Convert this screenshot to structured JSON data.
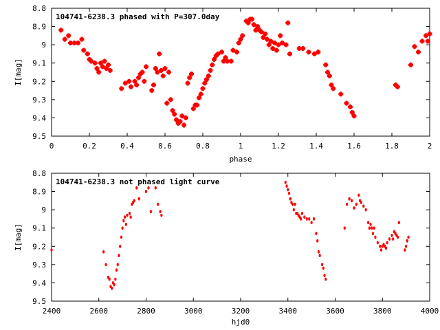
{
  "chart_data": [
    {
      "type": "scatter",
      "title": "104741-6238.3 phased with P=307.0day",
      "xlabel": "phase",
      "ylabel": "I[mag]",
      "xlim": [
        0,
        2
      ],
      "ylim": [
        8.8,
        9.5
      ],
      "y_inverted": true,
      "x_ticks": [
        "0",
        "0.2",
        "0.4",
        "0.6",
        "0.8",
        "1",
        "1.2",
        "1.4",
        "1.6",
        "1.8",
        "2"
      ],
      "y_ticks": [
        "8.8",
        "8.9",
        "9",
        "9.1",
        "9.2",
        "9.3",
        "9.4",
        "9.5"
      ],
      "marker_color": "#ff0000",
      "marker": "cross-large",
      "points": [
        [
          0.05,
          8.92
        ],
        [
          0.07,
          8.97
        ],
        [
          0.09,
          8.95
        ],
        [
          0.1,
          8.99
        ],
        [
          0.12,
          8.99
        ],
        [
          0.14,
          8.99
        ],
        [
          0.16,
          8.97
        ],
        [
          0.17,
          9.03
        ],
        [
          0.19,
          9.05
        ],
        [
          0.2,
          9.08
        ],
        [
          0.21,
          9.09
        ],
        [
          0.23,
          9.1
        ],
        [
          0.24,
          9.13
        ],
        [
          0.25,
          9.15
        ],
        [
          0.26,
          9.1
        ],
        [
          0.27,
          9.12
        ],
        [
          0.28,
          9.09
        ],
        [
          0.29,
          9.13
        ],
        [
          0.3,
          9.11
        ],
        [
          0.31,
          9.14
        ],
        [
          0.37,
          9.24
        ],
        [
          0.39,
          9.21
        ],
        [
          0.41,
          9.2
        ],
        [
          0.42,
          9.23
        ],
        [
          0.44,
          9.2
        ],
        [
          0.45,
          9.22
        ],
        [
          0.46,
          9.18
        ],
        [
          0.47,
          9.16
        ],
        [
          0.48,
          9.15
        ],
        [
          0.49,
          9.2
        ],
        [
          0.5,
          9.12
        ],
        [
          0.53,
          9.25
        ],
        [
          0.54,
          9.22
        ],
        [
          0.55,
          9.13
        ],
        [
          0.56,
          9.15
        ],
        [
          0.57,
          9.05
        ],
        [
          0.58,
          9.14
        ],
        [
          0.59,
          9.17
        ],
        [
          0.6,
          9.13
        ],
        [
          0.61,
          9.32
        ],
        [
          0.62,
          9.15
        ],
        [
          0.63,
          9.3
        ],
        [
          0.64,
          9.36
        ],
        [
          0.65,
          9.38
        ],
        [
          0.66,
          9.41
        ],
        [
          0.67,
          9.43
        ],
        [
          0.68,
          9.42
        ],
        [
          0.69,
          9.39
        ],
        [
          0.7,
          9.44
        ],
        [
          0.71,
          9.4
        ],
        [
          0.72,
          9.21
        ],
        [
          0.73,
          9.18
        ],
        [
          0.74,
          9.16
        ],
        [
          0.75,
          9.35
        ],
        [
          0.76,
          9.33
        ],
        [
          0.77,
          9.33
        ],
        [
          0.78,
          9.29
        ],
        [
          0.79,
          9.27
        ],
        [
          0.8,
          9.24
        ],
        [
          0.81,
          9.21
        ],
        [
          0.82,
          9.19
        ],
        [
          0.83,
          9.17
        ],
        [
          0.84,
          9.14
        ],
        [
          0.85,
          9.11
        ],
        [
          0.86,
          9.08
        ],
        [
          0.87,
          9.06
        ],
        [
          0.88,
          9.05
        ],
        [
          0.9,
          9.04
        ],
        [
          0.91,
          9.09
        ],
        [
          0.92,
          9.07
        ],
        [
          0.93,
          9.09
        ],
        [
          0.95,
          9.09
        ],
        [
          0.96,
          9.03
        ],
        [
          0.98,
          9.04
        ],
        [
          0.99,
          8.99
        ],
        [
          1.0,
          8.97
        ],
        [
          1.01,
          8.95
        ],
        [
          1.03,
          8.87
        ],
        [
          1.04,
          8.88
        ],
        [
          1.05,
          8.86
        ],
        [
          1.06,
          8.86
        ],
        [
          1.07,
          8.89
        ],
        [
          1.08,
          8.92
        ],
        [
          1.09,
          8.9
        ],
        [
          1.1,
          8.92
        ],
        [
          1.11,
          8.93
        ],
        [
          1.12,
          8.96
        ],
        [
          1.13,
          8.94
        ],
        [
          1.14,
          8.97
        ],
        [
          1.15,
          9.0
        ],
        [
          1.16,
          8.98
        ],
        [
          1.17,
          9.02
        ],
        [
          1.18,
          8.99
        ],
        [
          1.19,
          9.03
        ],
        [
          1.2,
          9.0
        ],
        [
          1.21,
          8.95
        ],
        [
          1.22,
          8.99
        ],
        [
          1.24,
          9.0
        ],
        [
          1.25,
          8.88
        ],
        [
          1.26,
          9.05
        ],
        [
          1.31,
          9.02
        ],
        [
          1.33,
          9.02
        ],
        [
          1.36,
          9.04
        ],
        [
          1.39,
          9.05
        ],
        [
          1.41,
          9.04
        ],
        [
          1.45,
          9.11
        ],
        [
          1.46,
          9.15
        ],
        [
          1.47,
          9.17
        ],
        [
          1.48,
          9.22
        ],
        [
          1.49,
          9.24
        ],
        [
          1.53,
          9.27
        ],
        [
          1.56,
          9.32
        ],
        [
          1.58,
          9.34
        ],
        [
          1.59,
          9.37
        ],
        [
          1.6,
          9.39
        ],
        [
          1.82,
          9.22
        ],
        [
          1.83,
          9.23
        ],
        [
          1.9,
          9.11
        ],
        [
          1.92,
          9.01
        ],
        [
          1.94,
          9.04
        ],
        [
          1.96,
          8.98
        ],
        [
          1.98,
          8.95
        ],
        [
          1.99,
          8.98
        ],
        [
          2.0,
          8.94
        ]
      ]
    },
    {
      "type": "scatter",
      "title": "104741-6238.3 not phased light curve",
      "xlabel": "hjd0",
      "ylabel": "I[mag]",
      "xlim": [
        2400,
        4000
      ],
      "ylim": [
        8.8,
        9.5
      ],
      "y_inverted": true,
      "x_ticks": [
        "2400",
        "2600",
        "2800",
        "3000",
        "3200",
        "3400",
        "3600",
        "3800",
        "4000"
      ],
      "y_ticks": [
        "8.8",
        "8.9",
        "9",
        "9.1",
        "9.2",
        "9.3",
        "9.4",
        "9.5"
      ],
      "marker_color": "#ff0000",
      "marker": "dot",
      "points": [
        [
          2400,
          9.22
        ],
        [
          2620,
          9.23
        ],
        [
          2630,
          9.3
        ],
        [
          2640,
          9.37
        ],
        [
          2645,
          9.38
        ],
        [
          2650,
          9.42
        ],
        [
          2655,
          9.43
        ],
        [
          2660,
          9.4
        ],
        [
          2665,
          9.41
        ],
        [
          2670,
          9.38
        ],
        [
          2675,
          9.33
        ],
        [
          2680,
          9.3
        ],
        [
          2685,
          9.25
        ],
        [
          2690,
          9.2
        ],
        [
          2695,
          9.15
        ],
        [
          2700,
          9.1
        ],
        [
          2705,
          9.06
        ],
        [
          2710,
          9.04
        ],
        [
          2715,
          9.08
        ],
        [
          2720,
          9.03
        ],
        [
          2730,
          9.02
        ],
        [
          2735,
          9.04
        ],
        [
          2740,
          8.97
        ],
        [
          2745,
          8.96
        ],
        [
          2750,
          8.95
        ],
        [
          2760,
          8.88
        ],
        [
          2770,
          8.94
        ],
        [
          2800,
          8.9
        ],
        [
          2810,
          8.88
        ],
        [
          2820,
          9.01
        ],
        [
          2840,
          8.88
        ],
        [
          2850,
          8.97
        ],
        [
          2860,
          9.01
        ],
        [
          2865,
          9.03
        ],
        [
          3390,
          8.85
        ],
        [
          3395,
          8.87
        ],
        [
          3400,
          8.89
        ],
        [
          3405,
          8.91
        ],
        [
          3410,
          8.94
        ],
        [
          3415,
          8.96
        ],
        [
          3420,
          8.97
        ],
        [
          3425,
          9.0
        ],
        [
          3430,
          8.97
        ],
        [
          3435,
          9.02
        ],
        [
          3440,
          9.02
        ],
        [
          3445,
          9.03
        ],
        [
          3450,
          9.04
        ],
        [
          3455,
          9.05
        ],
        [
          3460,
          9.02
        ],
        [
          3470,
          9.04
        ],
        [
          3480,
          9.05
        ],
        [
          3490,
          9.05
        ],
        [
          3500,
          9.07
        ],
        [
          3510,
          9.05
        ],
        [
          3520,
          9.13
        ],
        [
          3525,
          9.17
        ],
        [
          3530,
          9.23
        ],
        [
          3535,
          9.25
        ],
        [
          3545,
          9.3
        ],
        [
          3550,
          9.32
        ],
        [
          3555,
          9.36
        ],
        [
          3560,
          9.38
        ],
        [
          3640,
          9.1
        ],
        [
          3650,
          8.97
        ],
        [
          3660,
          8.94
        ],
        [
          3670,
          8.95
        ],
        [
          3680,
          8.99
        ],
        [
          3690,
          8.97
        ],
        [
          3700,
          8.92
        ],
        [
          3705,
          8.95
        ],
        [
          3710,
          8.96
        ],
        [
          3720,
          8.98
        ],
        [
          3730,
          9.0
        ],
        [
          3740,
          9.07
        ],
        [
          3745,
          9.1
        ],
        [
          3750,
          9.08
        ],
        [
          3755,
          9.1
        ],
        [
          3760,
          9.13
        ],
        [
          3765,
          9.1
        ],
        [
          3770,
          9.15
        ],
        [
          3780,
          9.18
        ],
        [
          3790,
          9.2
        ],
        [
          3795,
          9.22
        ],
        [
          3800,
          9.2
        ],
        [
          3805,
          9.19
        ],
        [
          3810,
          9.2
        ],
        [
          3815,
          9.21
        ],
        [
          3820,
          9.18
        ],
        [
          3830,
          9.16
        ],
        [
          3840,
          9.14
        ],
        [
          3845,
          9.16
        ],
        [
          3850,
          9.12
        ],
        [
          3855,
          9.13
        ],
        [
          3860,
          9.14
        ],
        [
          3865,
          9.15
        ],
        [
          3870,
          9.07
        ],
        [
          3895,
          9.22
        ],
        [
          3900,
          9.2
        ],
        [
          3905,
          9.17
        ],
        [
          3910,
          9.15
        ]
      ]
    }
  ]
}
